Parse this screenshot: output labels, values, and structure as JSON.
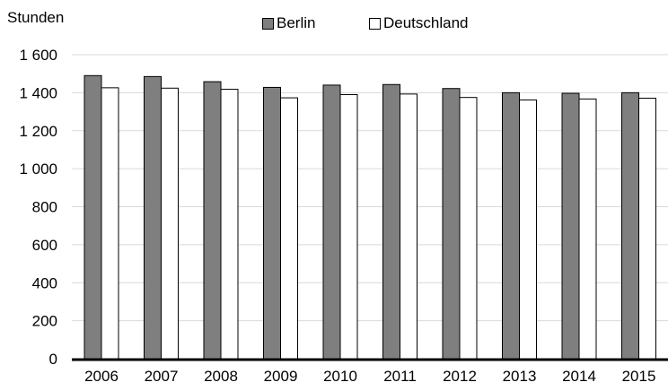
{
  "chart_data": {
    "type": "bar",
    "ylabel": "Stunden",
    "categories": [
      "2006",
      "2007",
      "2008",
      "2009",
      "2010",
      "2011",
      "2012",
      "2013",
      "2014",
      "2015"
    ],
    "series": [
      {
        "name": "Berlin",
        "color": "#7f7f7f",
        "values": [
          1490,
          1485,
          1458,
          1428,
          1440,
          1443,
          1422,
          1400,
          1397,
          1400
        ]
      },
      {
        "name": "Deutschland",
        "color": "#ffffff",
        "values": [
          1426,
          1424,
          1418,
          1373,
          1390,
          1393,
          1375,
          1362,
          1367,
          1371
        ]
      }
    ],
    "yticks": [
      "0",
      "200",
      "400",
      "600",
      "800",
      "1 000",
      "1 200",
      "1 400",
      "1 600"
    ],
    "ylim": [
      0,
      1600
    ],
    "grid": true,
    "legend_position": "top"
  }
}
